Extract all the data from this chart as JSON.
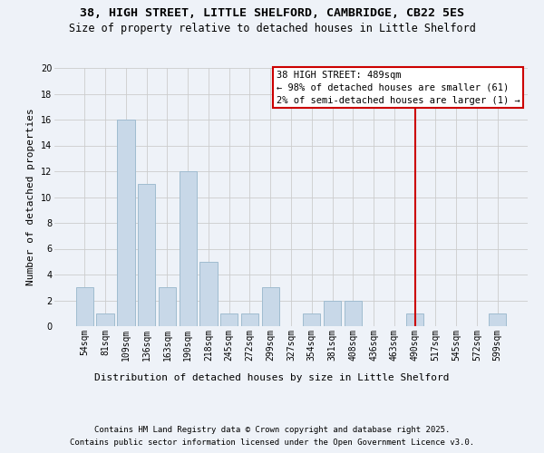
{
  "title": "38, HIGH STREET, LITTLE SHELFORD, CAMBRIDGE, CB22 5ES",
  "subtitle": "Size of property relative to detached houses in Little Shelford",
  "xlabel": "Distribution of detached houses by size in Little Shelford",
  "ylabel": "Number of detached properties",
  "categories": [
    "54sqm",
    "81sqm",
    "109sqm",
    "136sqm",
    "163sqm",
    "190sqm",
    "218sqm",
    "245sqm",
    "272sqm",
    "299sqm",
    "327sqm",
    "354sqm",
    "381sqm",
    "408sqm",
    "436sqm",
    "463sqm",
    "490sqm",
    "517sqm",
    "545sqm",
    "572sqm",
    "599sqm"
  ],
  "values": [
    3,
    1,
    16,
    11,
    3,
    12,
    5,
    1,
    1,
    3,
    0,
    1,
    2,
    2,
    0,
    0,
    1,
    0,
    0,
    0,
    1
  ],
  "bar_color": "#c8d8e8",
  "bar_edgecolor": "#a0bcd0",
  "vline_x": 16,
  "vline_color": "#cc0000",
  "annotation_text": "38 HIGH STREET: 489sqm\n← 98% of detached houses are smaller (61)\n2% of semi-detached houses are larger (1) →",
  "annotation_box_color": "#ffffff",
  "annotation_box_edgecolor": "#cc0000",
  "ylim": [
    0,
    20
  ],
  "yticks": [
    0,
    2,
    4,
    6,
    8,
    10,
    12,
    14,
    16,
    18,
    20
  ],
  "footer1": "Contains HM Land Registry data © Crown copyright and database right 2025.",
  "footer2": "Contains public sector information licensed under the Open Government Licence v3.0.",
  "background_color": "#eef2f8",
  "title_fontsize": 9.5,
  "subtitle_fontsize": 8.5,
  "axis_label_fontsize": 8,
  "tick_fontsize": 7,
  "annotation_fontsize": 7.5,
  "footer_fontsize": 6.5
}
